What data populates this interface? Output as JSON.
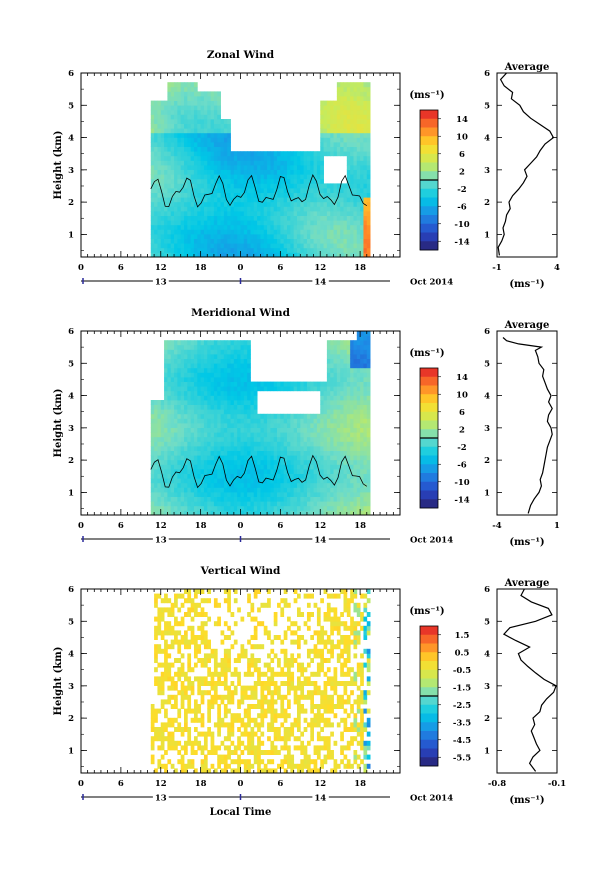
{
  "x_ticks": [
    "0",
    "6",
    "12",
    "18",
    "0",
    "6",
    "12",
    "18"
  ],
  "date_labels": [
    "13",
    "14"
  ],
  "month_label": "Oct 2014",
  "y_axis_label": "Height (km)",
  "x_axis_label": "Local Time",
  "unit_label": "(ms⁻¹)",
  "avg_title": "Average",
  "chart_data": [
    {
      "type": "heatmap",
      "title": "Zonal Wind",
      "ylabel": "Height (km)",
      "yticks": [
        1,
        2,
        3,
        4,
        5,
        6
      ],
      "ylim": [
        0.3,
        6.0
      ],
      "colorbar_ticks": [
        "14",
        "10",
        "6",
        "2",
        "-2",
        "-6",
        "-10",
        "-14"
      ],
      "colorbar_range": [
        -16,
        16
      ],
      "avg_title": "Average",
      "avg_xlabel": "(ms⁻¹)",
      "avg_xticks": [
        "-1",
        "4"
      ],
      "avg_xlim": [
        -1,
        4
      ],
      "avg_profile": {
        "height": [
          0.35,
          0.6,
          0.8,
          1.0,
          1.2,
          1.4,
          1.6,
          1.8,
          2.0,
          2.2,
          2.4,
          2.6,
          2.8,
          3.0,
          3.2,
          3.4,
          3.6,
          3.8,
          4.0,
          4.2,
          4.4,
          4.6,
          4.8,
          5.0,
          5.2,
          5.4,
          5.6,
          5.8,
          6.0
        ],
        "value": [
          -0.8,
          -0.9,
          -0.6,
          -0.4,
          -0.5,
          -0.3,
          -0.2,
          0.1,
          0.0,
          0.3,
          0.8,
          1.2,
          1.5,
          1.3,
          1.8,
          2.3,
          2.6,
          3.0,
          3.7,
          3.4,
          2.6,
          1.8,
          1.2,
          0.9,
          0.2,
          0.3,
          -0.4,
          -0.7,
          -0.2
        ]
      }
    },
    {
      "type": "heatmap",
      "title": "Meridional Wind",
      "ylabel": "Height (km)",
      "yticks": [
        1,
        2,
        3,
        4,
        5,
        6
      ],
      "ylim": [
        0.3,
        6.0
      ],
      "colorbar_ticks": [
        "14",
        "10",
        "6",
        "2",
        "-2",
        "-6",
        "-10",
        "-14"
      ],
      "colorbar_range": [
        -16,
        16
      ],
      "avg_title": "Average",
      "avg_xlabel": "(ms⁻¹)",
      "avg_xticks": [
        "-4",
        "1"
      ],
      "avg_xlim": [
        -4,
        1
      ],
      "avg_profile": {
        "height": [
          0.35,
          0.6,
          0.8,
          1.0,
          1.2,
          1.4,
          1.6,
          1.8,
          2.0,
          2.2,
          2.4,
          2.6,
          2.8,
          3.0,
          3.2,
          3.4,
          3.6,
          3.8,
          4.0,
          4.2,
          4.4,
          4.6,
          4.8,
          5.0,
          5.2,
          5.4,
          5.5,
          5.6,
          5.7,
          5.8
        ],
        "value": [
          -1.4,
          -1.2,
          -0.9,
          -0.5,
          -0.3,
          -0.4,
          -0.2,
          -0.1,
          0.0,
          0.1,
          0.2,
          0.4,
          0.6,
          0.5,
          0.2,
          0.3,
          0.6,
          0.3,
          0.5,
          0.2,
          0.0,
          -0.2,
          -0.1,
          -0.5,
          -0.6,
          -0.8,
          -0.3,
          -2.2,
          -3.2,
          -3.5
        ]
      }
    },
    {
      "type": "heatmap",
      "title": "Vertical Wind",
      "ylabel": "Height (km)",
      "xlabel": "Local Time",
      "yticks": [
        1,
        2,
        3,
        4,
        5,
        6
      ],
      "ylim": [
        0.3,
        6.0
      ],
      "colorbar_ticks": [
        "1.5",
        "0.5",
        "-0.5",
        "-1.5",
        "-2.5",
        "-3.5",
        "-4.5",
        "-5.5"
      ],
      "colorbar_range": [
        -6,
        2
      ],
      "avg_title": "Average",
      "avg_xlabel": "(ms⁻¹)",
      "avg_xticks": [
        "-0.8",
        "-0.1"
      ],
      "avg_xlim": [
        -0.8,
        -0.1
      ],
      "avg_profile": {
        "height": [
          0.35,
          0.6,
          0.8,
          1.0,
          1.2,
          1.4,
          1.6,
          1.8,
          2.0,
          2.2,
          2.4,
          2.6,
          2.8,
          3.0,
          3.2,
          3.4,
          3.6,
          3.8,
          4.0,
          4.2,
          4.4,
          4.6,
          4.8,
          5.0,
          5.2,
          5.4,
          5.6,
          5.8,
          6.0
        ],
        "value": [
          -0.35,
          -0.42,
          -0.38,
          -0.3,
          -0.34,
          -0.37,
          -0.4,
          -0.36,
          -0.38,
          -0.3,
          -0.28,
          -0.22,
          -0.14,
          -0.11,
          -0.25,
          -0.35,
          -0.44,
          -0.52,
          -0.55,
          -0.42,
          -0.58,
          -0.72,
          -0.65,
          -0.35,
          -0.16,
          -0.2,
          -0.4,
          -0.52,
          -0.48
        ]
      }
    }
  ]
}
